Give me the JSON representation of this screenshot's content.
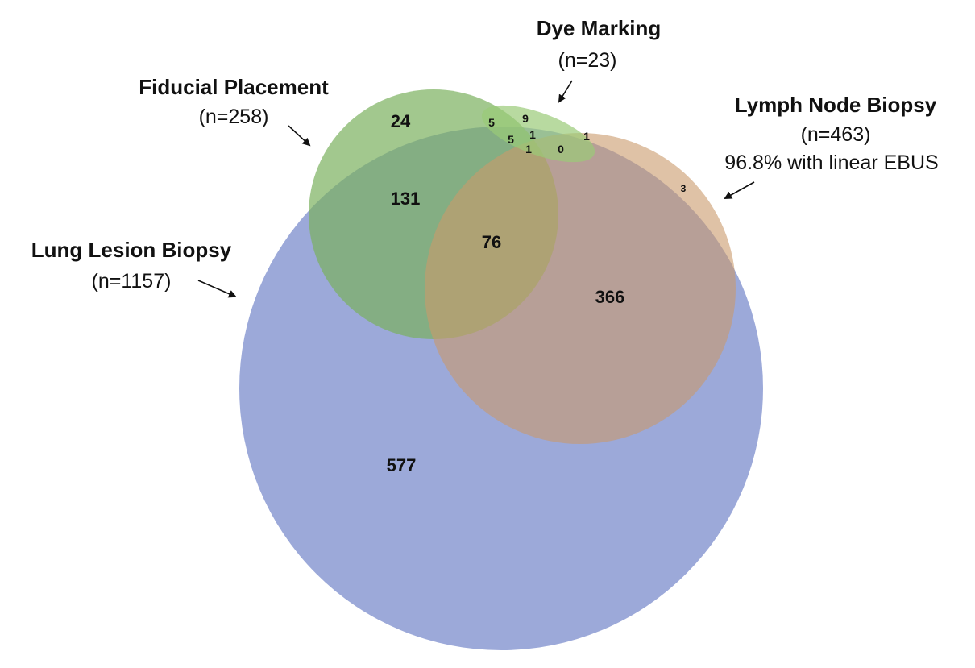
{
  "sets": {
    "lung": {
      "name": "Lung Lesion Biopsy",
      "count": "(n=1157)",
      "color": "#8394CF"
    },
    "fiducial": {
      "name": "Fiducial Placement",
      "count": "(n=258)",
      "color": "#7BB05E"
    },
    "dye": {
      "name": "Dye Marking",
      "count": "(n=23)",
      "color": "#9ACB78"
    },
    "lymph": {
      "name": "Lymph Node Biopsy",
      "count": "(n=463)",
      "note": "96.8% with linear EBUS",
      "color": "#C99A6B"
    }
  },
  "regions": {
    "lung_only": "577",
    "fiducial_only": "24",
    "lung_fiducial": "131",
    "lung_fiducial_lymph": "76",
    "lung_lymph": "366",
    "lymph_only": "3",
    "dye_only": "9",
    "dye_fiducial": "5",
    "dye_fiducial_lung": "5",
    "dye_fiducial_lung_center": "1",
    "dye_fiducial_lung_lymph": "1",
    "dye_lung_lymph": "0",
    "dye_lymph": "1"
  }
}
